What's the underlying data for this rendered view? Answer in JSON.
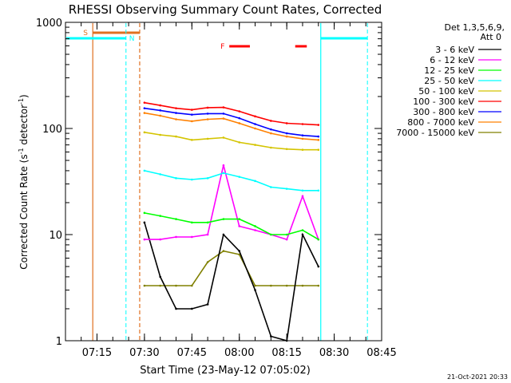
{
  "chart_data": {
    "type": "line",
    "title": "RHESSI Observing Summary Count Rates, Corrected",
    "xlabel": "Start Time (23-May-12 07:05:02)",
    "ylabel_main": "Corrected Count Rate (s",
    "ylabel_sup1": "-1",
    "ylabel_mid": " detector",
    "ylabel_sup2": "-1",
    "ylabel_end": ")",
    "yscale": "log",
    "xlim": [
      "07:05:02",
      "08:45:00"
    ],
    "ylim": [
      1,
      1000
    ],
    "x_ticks": [
      "07:15",
      "07:30",
      "07:45",
      "08:00",
      "08:15",
      "08:30",
      "08:45"
    ],
    "y_ticks": [
      "1",
      "10",
      "100",
      "1000"
    ],
    "legend": {
      "placement": "top-right, outside plot",
      "header_line1": "Det 1,3,5,6,9,",
      "header_line2": "Att 0"
    },
    "timestamp": "21-Oct-2021 20:33",
    "series": [
      {
        "name": "3 - 6 keV",
        "color": "#000000",
        "x": [
          "07:30",
          "07:35",
          "07:40",
          "07:45",
          "07:50",
          "07:55",
          "08:00",
          "08:05",
          "08:10",
          "08:15",
          "08:20",
          "08:25"
        ],
        "values": [
          13,
          4,
          2,
          2,
          2.2,
          10,
          7,
          3,
          1.1,
          1.0,
          10,
          5
        ]
      },
      {
        "name": "6 - 12 keV",
        "color": "#ff00ff",
        "x": [
          "07:30",
          "07:35",
          "07:40",
          "07:45",
          "07:50",
          "07:55",
          "08:00",
          "08:05",
          "08:10",
          "08:15",
          "08:20",
          "08:25"
        ],
        "values": [
          9,
          9,
          9.5,
          9.5,
          10,
          45,
          12,
          11,
          10,
          9,
          23,
          9
        ]
      },
      {
        "name": "12 - 25 keV",
        "color": "#00ff00",
        "x": [
          "07:30",
          "07:35",
          "07:40",
          "07:45",
          "07:50",
          "07:55",
          "08:00",
          "08:05",
          "08:10",
          "08:15",
          "08:20",
          "08:25"
        ],
        "values": [
          16,
          15,
          14,
          13,
          13,
          14,
          14,
          12,
          10,
          10,
          11,
          9
        ]
      },
      {
        "name": "25 - 50 keV",
        "color": "#00ffff",
        "x": [
          "07:30",
          "07:35",
          "07:40",
          "07:45",
          "07:50",
          "07:55",
          "08:00",
          "08:05",
          "08:10",
          "08:15",
          "08:20",
          "08:25"
        ],
        "values": [
          40,
          37,
          34,
          33,
          34,
          38,
          35,
          32,
          28,
          27,
          26,
          26
        ]
      },
      {
        "name": "50 - 100 keV",
        "color": "#d4c400",
        "x": [
          "07:30",
          "07:35",
          "07:40",
          "07:45",
          "07:50",
          "07:55",
          "08:00",
          "08:05",
          "08:10",
          "08:15",
          "08:20",
          "08:25"
        ],
        "values": [
          92,
          87,
          84,
          78,
          80,
          82,
          74,
          70,
          66,
          64,
          63,
          63
        ]
      },
      {
        "name": "100 - 300 keV",
        "color": "#ff0000",
        "x": [
          "07:30",
          "07:35",
          "07:40",
          "07:45",
          "07:50",
          "07:55",
          "08:00",
          "08:05",
          "08:10",
          "08:15",
          "08:20",
          "08:25"
        ],
        "values": [
          175,
          165,
          155,
          150,
          157,
          158,
          145,
          130,
          118,
          112,
          110,
          108
        ]
      },
      {
        "name": "300 - 800 keV",
        "color": "#0000ff",
        "x": [
          "07:30",
          "07:35",
          "07:40",
          "07:45",
          "07:50",
          "07:55",
          "08:00",
          "08:05",
          "08:10",
          "08:15",
          "08:20",
          "08:25"
        ],
        "values": [
          155,
          148,
          140,
          135,
          138,
          138,
          125,
          110,
          98,
          90,
          86,
          84
        ]
      },
      {
        "name": "800 - 7000 keV",
        "color": "#ff8000",
        "x": [
          "07:30",
          "07:35",
          "07:40",
          "07:45",
          "07:50",
          "07:55",
          "08:00",
          "08:05",
          "08:10",
          "08:15",
          "08:20",
          "08:25"
        ],
        "values": [
          140,
          132,
          122,
          117,
          122,
          124,
          112,
          100,
          90,
          84,
          80,
          78
        ]
      },
      {
        "name": "7000 - 15000 keV",
        "color": "#808000",
        "x": [
          "07:30",
          "07:35",
          "07:40",
          "07:45",
          "07:50",
          "07:55",
          "08:00",
          "08:05",
          "08:10",
          "08:15",
          "08:20",
          "08:25"
        ],
        "values": [
          3.3,
          3.3,
          3.3,
          3.3,
          5.5,
          7,
          6.5,
          3.3,
          3.3,
          3.3,
          3.3,
          3.3
        ]
      }
    ],
    "annotations": {
      "saa_label": "S",
      "night_label": "N",
      "flare_label": "F",
      "saa_color": "#e07020",
      "night_color": "#00ffff",
      "flare_color": "#ff0000"
    }
  }
}
